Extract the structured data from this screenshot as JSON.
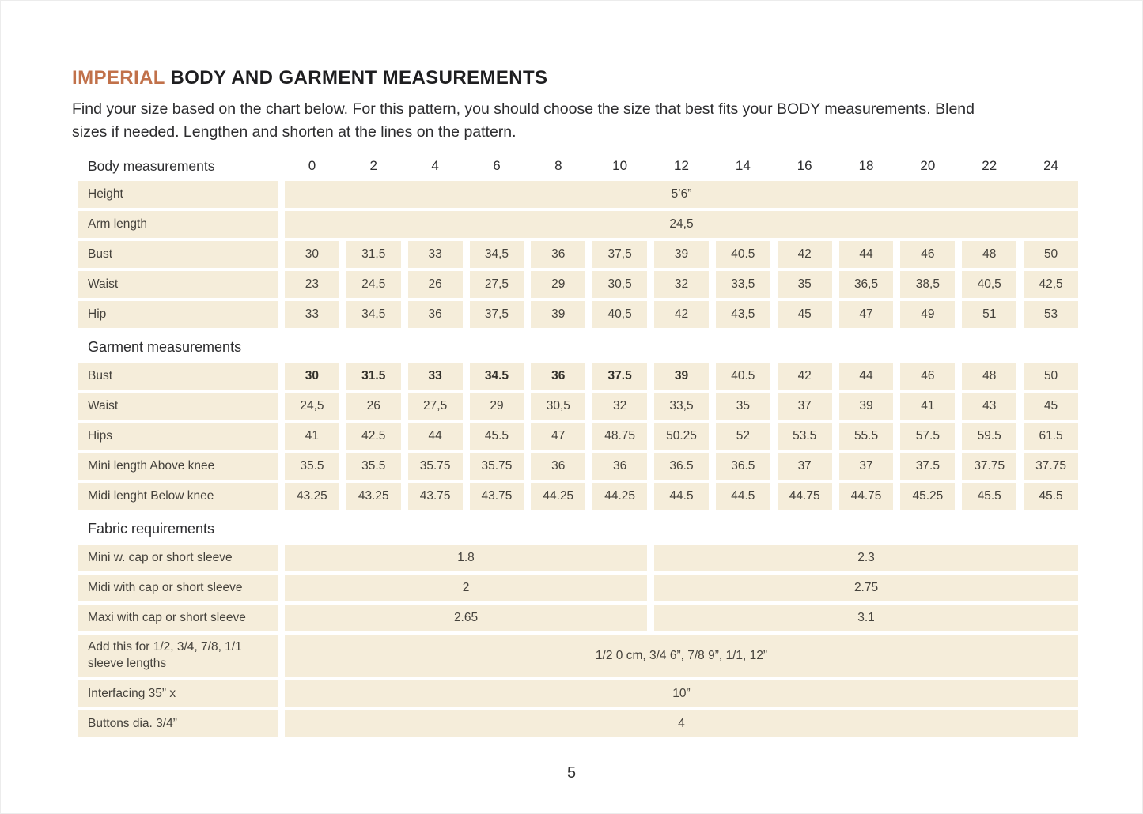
{
  "page": {
    "title_highlight": "IMPERIAL",
    "title_rest": " BODY AND GARMENT MEASUREMENTS",
    "intro": "Find your size based on the chart below. For this pattern, you should choose the size that best fits your BODY measurements. Blend sizes if needed. Lengthen and shorten at the lines on the pattern.",
    "page_number": "5"
  },
  "colors": {
    "accent_orange": "#c1714a",
    "cell_beige": "#f5edda",
    "text_dark": "#2d2d2f"
  },
  "table": {
    "header": {
      "label": "Body measurements",
      "sizes": [
        "0",
        "2",
        "4",
        "6",
        "8",
        "10",
        "12",
        "14",
        "16",
        "18",
        "20",
        "22",
        "24"
      ]
    },
    "body_rows": [
      {
        "label": "Height",
        "span_value": "5’6”"
      },
      {
        "label": "Arm length",
        "span_value": "24,5"
      },
      {
        "label": "Bust",
        "values": [
          "30",
          "31,5",
          "33",
          "34,5",
          "36",
          "37,5",
          "39",
          "40.5",
          "42",
          "44",
          "46",
          "48",
          "50"
        ]
      },
      {
        "label": "Waist",
        "values": [
          "23",
          "24,5",
          "26",
          "27,5",
          "29",
          "30,5",
          "32",
          "33,5",
          "35",
          "36,5",
          "38,5",
          "40,5",
          "42,5"
        ]
      },
      {
        "label": "Hip",
        "values": [
          "33",
          "34,5",
          "36",
          "37,5",
          "39",
          "40,5",
          "42",
          "43,5",
          "45",
          "47",
          "49",
          "51",
          "53"
        ]
      }
    ],
    "garment_section_label": "Garment measurements",
    "garment_rows": [
      {
        "label": "Bust",
        "bold_count": 7,
        "values": [
          "30",
          "31.5",
          "33",
          "34.5",
          "36",
          "37.5",
          "39",
          "40.5",
          "42",
          "44",
          "46",
          "48",
          "50"
        ]
      },
      {
        "label": "Waist",
        "values": [
          "24,5",
          "26",
          "27,5",
          "29",
          "30,5",
          "32",
          "33,5",
          "35",
          "37",
          "39",
          "41",
          "43",
          "45"
        ]
      },
      {
        "label": "Hips",
        "values": [
          "41",
          "42.5",
          "44",
          "45.5",
          "47",
          "48.75",
          "50.25",
          "52",
          "53.5",
          "55.5",
          "57.5",
          "59.5",
          "61.5"
        ]
      },
      {
        "label": "Mini length Above knee",
        "values": [
          "35.5",
          "35.5",
          "35.75",
          "35.75",
          "36",
          "36",
          "36.5",
          "36.5",
          "37",
          "37",
          "37.5",
          "37.75",
          "37.75"
        ]
      },
      {
        "label": "Midi lenght Below knee",
        "values": [
          "43.25",
          "43.25",
          "43.75",
          "43.75",
          "44.25",
          "44.25",
          "44.5",
          "44.5",
          "44.75",
          "44.75",
          "45.25",
          "45.5",
          "45.5"
        ]
      }
    ],
    "fabric_section_label": "Fabric requirements",
    "fabric_rows": [
      {
        "label": "Mini w. cap or short sleeve",
        "left": "1.8",
        "right": "2.3"
      },
      {
        "label": "Midi with cap or short sleeve",
        "left": "2",
        "right": "2.75"
      },
      {
        "label": "Maxi with cap or short sleeve",
        "left": "2.65",
        "right": "3.1"
      }
    ],
    "extra_rows": [
      {
        "label": "Add this for 1/2, 3/4, 7/8, 1/1 sleeve lengths",
        "tall": true,
        "span_value": "1/2 0 cm, 3/4 6”, 7/8 9”, 1/1, 12”"
      },
      {
        "label": "Interfacing 35” x",
        "span_value": "10”"
      },
      {
        "label": "Buttons dia. 3/4”",
        "span_value": "4"
      }
    ]
  }
}
